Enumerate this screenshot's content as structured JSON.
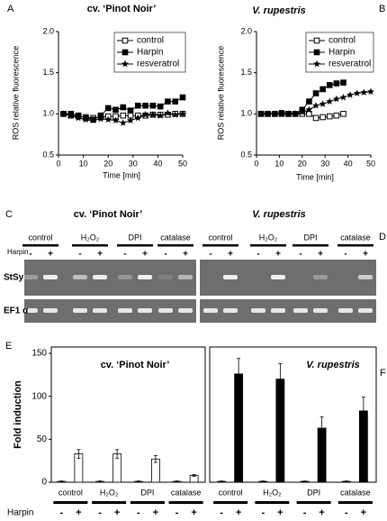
{
  "chart_data": [
    {
      "type": "line",
      "panel": "A",
      "title": "cv. ‘Pinot Noir’",
      "x_label": "Time [min]",
      "y_label": "ROS relative fluorescence",
      "x": [
        2,
        5,
        8,
        11,
        14,
        17,
        20,
        23,
        26,
        29,
        32,
        35,
        38,
        41,
        44,
        47,
        50
      ],
      "series": [
        {
          "name": "control",
          "color": "#000000",
          "marker": "open-square",
          "values": [
            1.0,
            0.98,
            0.97,
            0.96,
            0.95,
            0.96,
            0.97,
            0.97,
            0.98,
            0.98,
            0.98,
            0.98,
            0.99,
            0.99,
            0.99,
            1.0,
            1.0
          ]
        },
        {
          "name": "Harpin",
          "color": "#000000",
          "marker": "filled-square",
          "values": [
            1.0,
            1.0,
            0.98,
            0.95,
            0.93,
            0.98,
            1.07,
            1.05,
            1.08,
            1.04,
            1.1,
            1.1,
            1.1,
            1.09,
            1.15,
            1.15,
            1.2
          ]
        },
        {
          "name": "resveratrol",
          "color": "#000000",
          "marker": "star",
          "values": [
            1.0,
            0.98,
            0.95,
            0.93,
            0.92,
            0.94,
            0.93,
            0.92,
            0.89,
            0.92,
            0.95,
            0.99,
            0.99,
            0.98,
            1.01,
            0.99,
            1.0
          ]
        }
      ],
      "xlim": [
        0,
        50
      ],
      "ylim": [
        0.5,
        2.0
      ],
      "xticks": [
        0,
        10,
        20,
        30,
        40,
        50
      ],
      "yticks": [
        0.5,
        {
          "value": 1,
          "label": "1.0"
        },
        1.5,
        {
          "value": 2,
          "label": "2.0"
        }
      ],
      "legend": "upper right"
    },
    {
      "type": "line",
      "panel": "B",
      "title": "V. rupestris",
      "x_label": "Time [min]",
      "y_label": "ROS relative fluorescence",
      "x": [
        2,
        5,
        8,
        11,
        14,
        17,
        20,
        23,
        26,
        29,
        32,
        35,
        38,
        41,
        44,
        47,
        50
      ],
      "series": [
        {
          "name": "control",
          "color": "#000000",
          "marker": "open-square",
          "values": [
            1.0,
            1.0,
            1.0,
            1.0,
            1.0,
            1.0,
            1.0,
            1.0,
            0.95,
            0.96,
            0.97,
            0.98,
            1.0,
            null,
            null,
            null,
            null
          ]
        },
        {
          "name": "Harpin",
          "color": "#000000",
          "marker": "filled-square",
          "values": [
            1.0,
            1.0,
            1.0,
            1.01,
            1.0,
            1.0,
            1.05,
            1.15,
            1.25,
            1.3,
            1.35,
            1.37,
            1.38,
            null,
            null,
            null,
            null
          ]
        },
        {
          "name": "resveratrol",
          "color": "#000000",
          "marker": "star",
          "values": [
            1.0,
            1.0,
            1.0,
            1.0,
            1.0,
            1.0,
            1.02,
            1.05,
            1.1,
            1.12,
            1.15,
            1.18,
            1.2,
            1.23,
            1.25,
            1.26,
            1.27
          ]
        }
      ],
      "xlim": [
        0,
        50
      ],
      "ylim": [
        0.5,
        2.0
      ],
      "xticks": [
        0,
        10,
        20,
        30,
        40,
        50
      ],
      "yticks": [
        0.5,
        {
          "value": 1,
          "label": "1.0"
        },
        1.5,
        {
          "value": 2,
          "label": "2.0"
        }
      ],
      "legend": "upper right"
    },
    {
      "type": "bar",
      "panel": "E",
      "title": "cv. ‘Pinot Noir’",
      "y_label": "Fold induction",
      "group_label": "Harpin",
      "categories": [
        "control",
        "H₂O₂",
        "DPI",
        "catalase"
      ],
      "series": [
        {
          "name": "-",
          "color": "#ffffff",
          "values": [
            1,
            1,
            1,
            1
          ],
          "errors": [
            0.5,
            0.5,
            0.5,
            0.5
          ]
        },
        {
          "name": "+",
          "color": "#ffffff",
          "values": [
            33,
            33,
            27,
            8
          ],
          "errors": [
            5,
            5,
            4,
            1
          ]
        }
      ],
      "ylim": [
        0,
        150
      ],
      "yticks": [
        0,
        50,
        100,
        150
      ]
    },
    {
      "type": "bar",
      "panel": "F",
      "title": "V. rupestris",
      "categories": [
        "control",
        "H₂O₂",
        "DPI",
        "catalase"
      ],
      "series": [
        {
          "name": "-",
          "color": "#000000",
          "values": [
            1,
            1,
            1,
            1
          ],
          "errors": [
            0.5,
            0.5,
            0.5,
            0.5
          ]
        },
        {
          "name": "+",
          "color": "#000000",
          "values": [
            126,
            120,
            63,
            83
          ],
          "errors": [
            18,
            18,
            13,
            16
          ]
        }
      ],
      "ylim": [
        0,
        150
      ]
    }
  ],
  "gels": {
    "panel_left": "C",
    "panel_right": "D",
    "title_left": "cv. ‘Pinot Noir’",
    "title_right": "V. rupestris",
    "groups": [
      "control",
      "H₂O₂",
      "DPI",
      "catalase"
    ],
    "harpin_label": "Harpin",
    "signs": [
      "-",
      "+"
    ],
    "rows": [
      "StSy",
      "EF1 α"
    ]
  }
}
